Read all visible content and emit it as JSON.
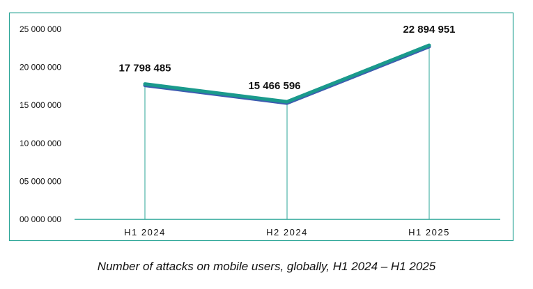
{
  "chart_data": {
    "type": "line",
    "categories": [
      "H1 2024",
      "H2 2024",
      "H1 2025"
    ],
    "values": [
      17798485,
      15466596,
      22894951
    ],
    "data_labels": [
      "17 798 485",
      "15 466 596",
      "22 894 951"
    ],
    "y_ticks": [
      0,
      5000000,
      10000000,
      15000000,
      20000000,
      25000000
    ],
    "y_tick_labels": [
      "00 000 000",
      "05 000 000",
      "10 000 000",
      "15 000 000",
      "20 000 000",
      "25 000 000"
    ],
    "ylim": [
      0,
      25000000
    ],
    "grid": false,
    "title": "",
    "xlabel": "",
    "ylabel": "",
    "colors": {
      "line": "#1a9a8c",
      "line_shadow": "#3d5cb0",
      "axis": "#2aa597",
      "frame": "#2aa597",
      "text": "#111111"
    }
  },
  "caption": "Number of attacks on mobile users, globally, H1 2024 – H1 2025"
}
